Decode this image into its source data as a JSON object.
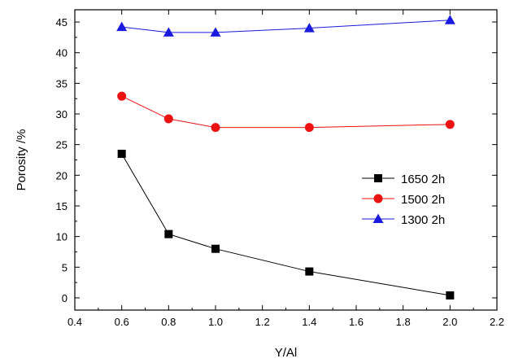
{
  "chart_data": {
    "type": "line",
    "title": "",
    "xlabel": "Y/Al",
    "ylabel": "Porosity /%",
    "xlim": [
      0.4,
      2.2
    ],
    "ylim": [
      -2,
      47
    ],
    "xticks": [
      0.4,
      0.6,
      0.8,
      1.0,
      1.2,
      1.4,
      1.6,
      1.8,
      2.0,
      2.2
    ],
    "xtick_labels": [
      "0.4",
      "0.6",
      "0.8",
      "1.0",
      "1.2",
      "1.4",
      "1.6",
      "1.8",
      "2.0",
      "2.2"
    ],
    "yticks": [
      0,
      5,
      10,
      15,
      20,
      25,
      30,
      35,
      40,
      45
    ],
    "ytick_labels": [
      "0",
      "5",
      "10",
      "15",
      "20",
      "25",
      "30",
      "35",
      "40",
      "45"
    ],
    "grid": false,
    "legend_position": "center-right",
    "x": [
      0.6,
      0.8,
      1.0,
      1.4,
      2.0
    ],
    "series": [
      {
        "name": "1650 2h",
        "marker": "square",
        "color": "#000000",
        "values": [
          23.5,
          10.4,
          8.0,
          4.3,
          0.4
        ]
      },
      {
        "name": "1500 2h",
        "marker": "circle",
        "color": "#ee1111",
        "values": [
          32.9,
          29.2,
          27.8,
          27.8,
          28.3
        ]
      },
      {
        "name": "1300 2h",
        "marker": "triangle",
        "color": "#1a1ae0",
        "values": [
          44.2,
          43.3,
          43.3,
          44.0,
          45.3
        ]
      }
    ]
  }
}
